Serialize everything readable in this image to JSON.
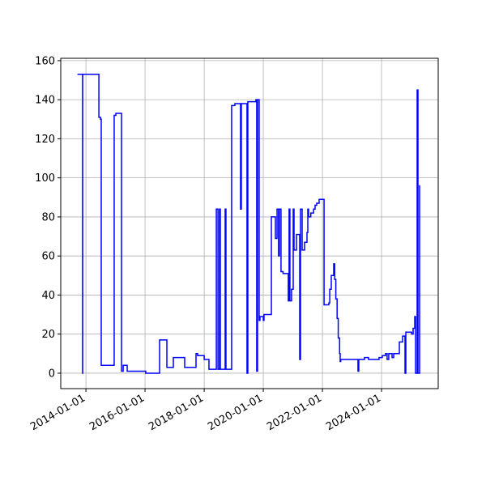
{
  "chart_data": {
    "type": "line",
    "drawstyle": "steps-post",
    "grid": true,
    "x": [
      "2013-09-18",
      "2013-11-21",
      "2013-11-22",
      "2014-06-10",
      "2014-06-30",
      "2014-07-09",
      "2014-12-16",
      "2015-01-06",
      "2015-03-17",
      "2015-04-06",
      "2015-05-26",
      "2016-01-10",
      "2016-06-29",
      "2016-09-27",
      "2016-12-16",
      "2017-05-05",
      "2017-09-22",
      "2017-10-12",
      "2018-01-01",
      "2018-03-01",
      "2018-05-31",
      "2018-06-20",
      "2018-07-09",
      "2018-07-19",
      "2018-09-17",
      "2018-09-27",
      "2018-12-06",
      "2019-01-15",
      "2019-03-26",
      "2019-04-05",
      "2019-06-14",
      "2019-06-24",
      "2019-10-02",
      "2019-10-12",
      "2019-10-22",
      "2019-11-11",
      "2019-11-21",
      "2020-01-01",
      "2020-01-10",
      "2020-04-10",
      "2020-05-30",
      "2020-06-19",
      "2020-07-08",
      "2020-07-18",
      "2020-08-07",
      "2020-09-01",
      "2020-11-05",
      "2020-11-15",
      "2020-11-25",
      "2020-12-15",
      "2021-01-05",
      "2021-01-15",
      "2021-02-14",
      "2021-03-26",
      "2021-04-05",
      "2021-04-25",
      "2021-05-25",
      "2021-06-24",
      "2021-07-04",
      "2021-07-14",
      "2021-08-10",
      "2021-09-13",
      "2021-10-02",
      "2021-10-22",
      "2021-11-21",
      "2022-01-21",
      "2022-03-21",
      "2022-04-01",
      "2022-04-20",
      "2022-05-20",
      "2022-06-01",
      "2022-06-15",
      "2022-07-01",
      "2022-07-15",
      "2022-08-01",
      "2022-08-08",
      "2022-08-15",
      "2023-03-16",
      "2023-03-26",
      "2023-06-04",
      "2023-07-24",
      "2023-12-01",
      "2024-01-10",
      "2024-02-19",
      "2024-03-10",
      "2024-03-30",
      "2024-05-10",
      "2024-05-30",
      "2024-08-08",
      "2024-09-17",
      "2024-10-17",
      "2024-10-27",
      "2025-01-06",
      "2025-01-25",
      "2025-02-14",
      "2025-02-24",
      "2025-03-16",
      "2025-03-26",
      "2025-04-15",
      "2025-04-20"
    ],
    "series": [
      {
        "color": "#0000ff",
        "values": [
          153,
          0,
          153,
          131,
          130,
          4,
          132,
          133,
          1,
          4,
          1,
          0,
          17,
          3,
          8,
          3,
          10,
          9,
          7,
          2,
          84,
          2,
          84,
          2,
          84,
          2,
          137,
          138,
          84,
          138,
          0,
          139,
          140,
          1,
          140,
          27,
          29,
          27,
          30,
          80,
          69,
          84,
          60,
          84,
          52,
          51,
          37,
          84,
          37,
          43,
          84,
          63,
          71,
          7,
          84,
          63,
          67,
          72,
          84,
          80,
          82,
          84,
          86,
          87,
          89,
          35,
          36,
          43,
          50,
          56,
          48,
          38,
          28,
          18,
          10,
          6,
          7,
          1,
          7,
          8,
          7,
          8,
          9,
          10,
          7,
          10,
          8,
          10,
          16,
          19,
          0,
          21,
          20,
          23,
          29,
          0,
          145,
          0,
          96,
          96
        ]
      }
    ],
    "xlim": [
      "2013-02-24",
      "2025-12-01"
    ],
    "xticks": [
      "2014-01-01",
      "2016-01-01",
      "2018-01-01",
      "2020-01-01",
      "2022-01-01",
      "2024-01-01"
    ],
    "ylim": [
      -7.9,
      161.2
    ],
    "yticks": [
      0,
      20,
      40,
      60,
      80,
      100,
      120,
      140,
      160
    ]
  }
}
